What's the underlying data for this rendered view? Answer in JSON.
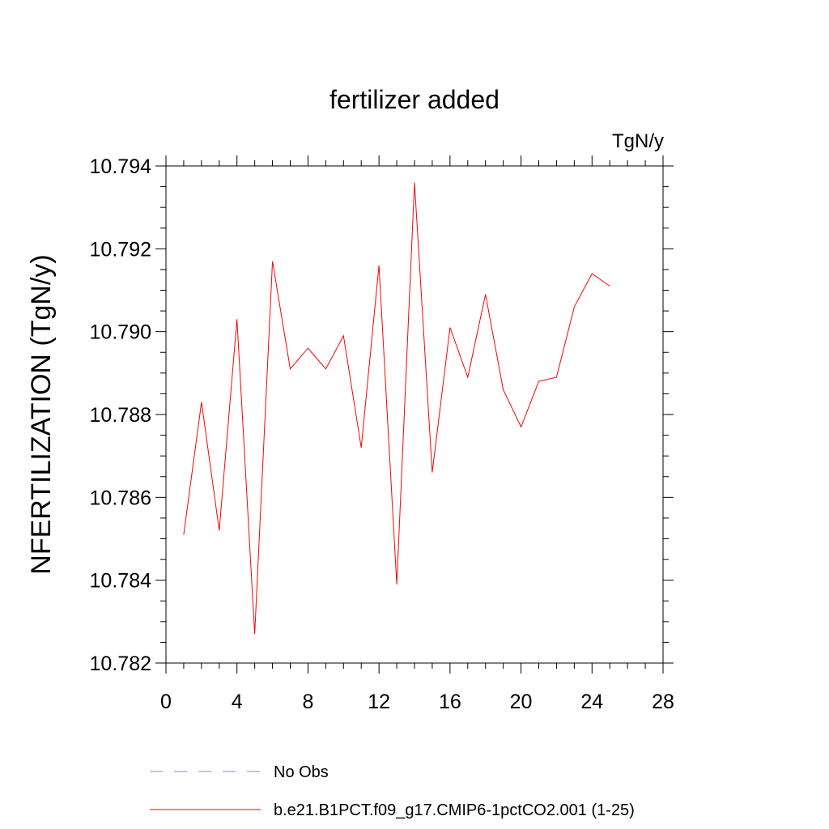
{
  "chart_data": {
    "type": "line",
    "title": "fertilizer added",
    "units": "TgN/y",
    "ylabel": "NFERTILIZATION  (TgN/y)",
    "xlabel": "",
    "xlim": [
      0,
      28
    ],
    "ylim": [
      10.782,
      10.794
    ],
    "xticks": [
      0,
      4,
      8,
      12,
      16,
      20,
      24,
      28
    ],
    "xtick_labels": [
      "0",
      "4",
      "8",
      "12",
      "16",
      "20",
      "24",
      "28"
    ],
    "yticks": [
      10.782,
      10.784,
      10.786,
      10.788,
      10.79,
      10.792,
      10.794
    ],
    "ytick_labels": [
      "10.782",
      "10.784",
      "10.786",
      "10.788",
      "10.790",
      "10.792",
      "10.794"
    ],
    "grid": false,
    "legend_position": "bottom",
    "series": [
      {
        "name": "b.e21.B1PCT.f09_g17.CMIP6-1pctCO2.001 (1-25)",
        "color": "#ff0000",
        "style": "solid",
        "x": [
          1,
          2,
          3,
          4,
          5,
          6,
          7,
          8,
          9,
          10,
          11,
          12,
          13,
          14,
          15,
          16,
          17,
          18,
          19,
          20,
          21,
          22,
          23,
          24,
          25
        ],
        "y": [
          10.7851,
          10.7883,
          10.7852,
          10.7903,
          10.7827,
          10.7917,
          10.7891,
          10.7896,
          10.7891,
          10.7899,
          10.7872,
          10.7916,
          10.7839,
          10.7936,
          10.7866,
          10.7901,
          10.7889,
          10.7909,
          10.7886,
          10.7877,
          10.7888,
          10.7889,
          10.7906,
          10.7914,
          10.7911
        ]
      }
    ],
    "legend": [
      {
        "label": "No Obs",
        "color": "#8080ff",
        "style": "dashed"
      },
      {
        "label": "b.e21.B1PCT.f09_g17.CMIP6-1pctCO2.001 (1-25)",
        "color": "#ff0000",
        "style": "solid"
      }
    ]
  }
}
